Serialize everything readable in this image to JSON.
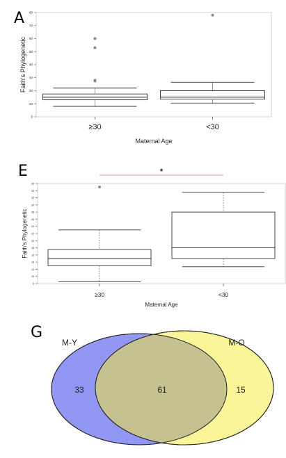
{
  "panels": [
    {
      "label": "A",
      "chart_data": {
        "type": "box",
        "ylabel": "Faith's Phylogenetic",
        "xlabel": "Maternal Age",
        "categories": [
          "≥30",
          "<30"
        ],
        "ylim": [
          0,
          80
        ],
        "yticks": [
          0,
          10,
          20,
          30,
          40,
          50,
          60,
          70,
          80
        ],
        "boxes": [
          {
            "category": "≥30",
            "whisker_low": 8,
            "q1": 13,
            "median": 15,
            "q3": 17.5,
            "whisker_high": 22,
            "outliers": [
              27.5,
              28,
              53,
              60
            ]
          },
          {
            "category": "<30",
            "whisker_low": 10.5,
            "q1": 13.5,
            "median": 15,
            "q3": 20,
            "whisker_high": 26.5,
            "outliers": [
              78
            ]
          }
        ]
      }
    },
    {
      "label": "E",
      "chart_data": {
        "type": "box",
        "ylabel": "Faith's Phylogenetic",
        "xlabel": "Maternal Age",
        "categories": [
          "≥30",
          "<30"
        ],
        "ylim": [
          8,
          36
        ],
        "yticks": [
          8,
          10,
          12,
          14,
          16,
          18,
          20,
          22,
          24,
          26,
          28,
          30,
          32,
          34,
          36
        ],
        "boxes": [
          {
            "category": "≥30",
            "whisker_low": 8.5,
            "q1": 13,
            "median": 15,
            "q3": 17.5,
            "whisker_high": 23,
            "outliers": [
              35
            ]
          },
          {
            "category": "<30",
            "whisker_low": 12.7,
            "q1": 15,
            "median": 18,
            "q3": 28,
            "whisker_high": 33.5,
            "outliers": []
          }
        ],
        "annotations": [
          {
            "text": "*",
            "between": [
              "≥30",
              "<30"
            ]
          }
        ]
      }
    },
    {
      "label": "G",
      "chart_data": {
        "type": "venn",
        "sets": [
          {
            "name": "M-Y",
            "only": 33,
            "color": "#9297f3"
          },
          {
            "name": "M-O",
            "only": 15,
            "color": "#fbf59a"
          }
        ],
        "intersection": 61,
        "intersection_color": "#c5c191"
      }
    }
  ]
}
